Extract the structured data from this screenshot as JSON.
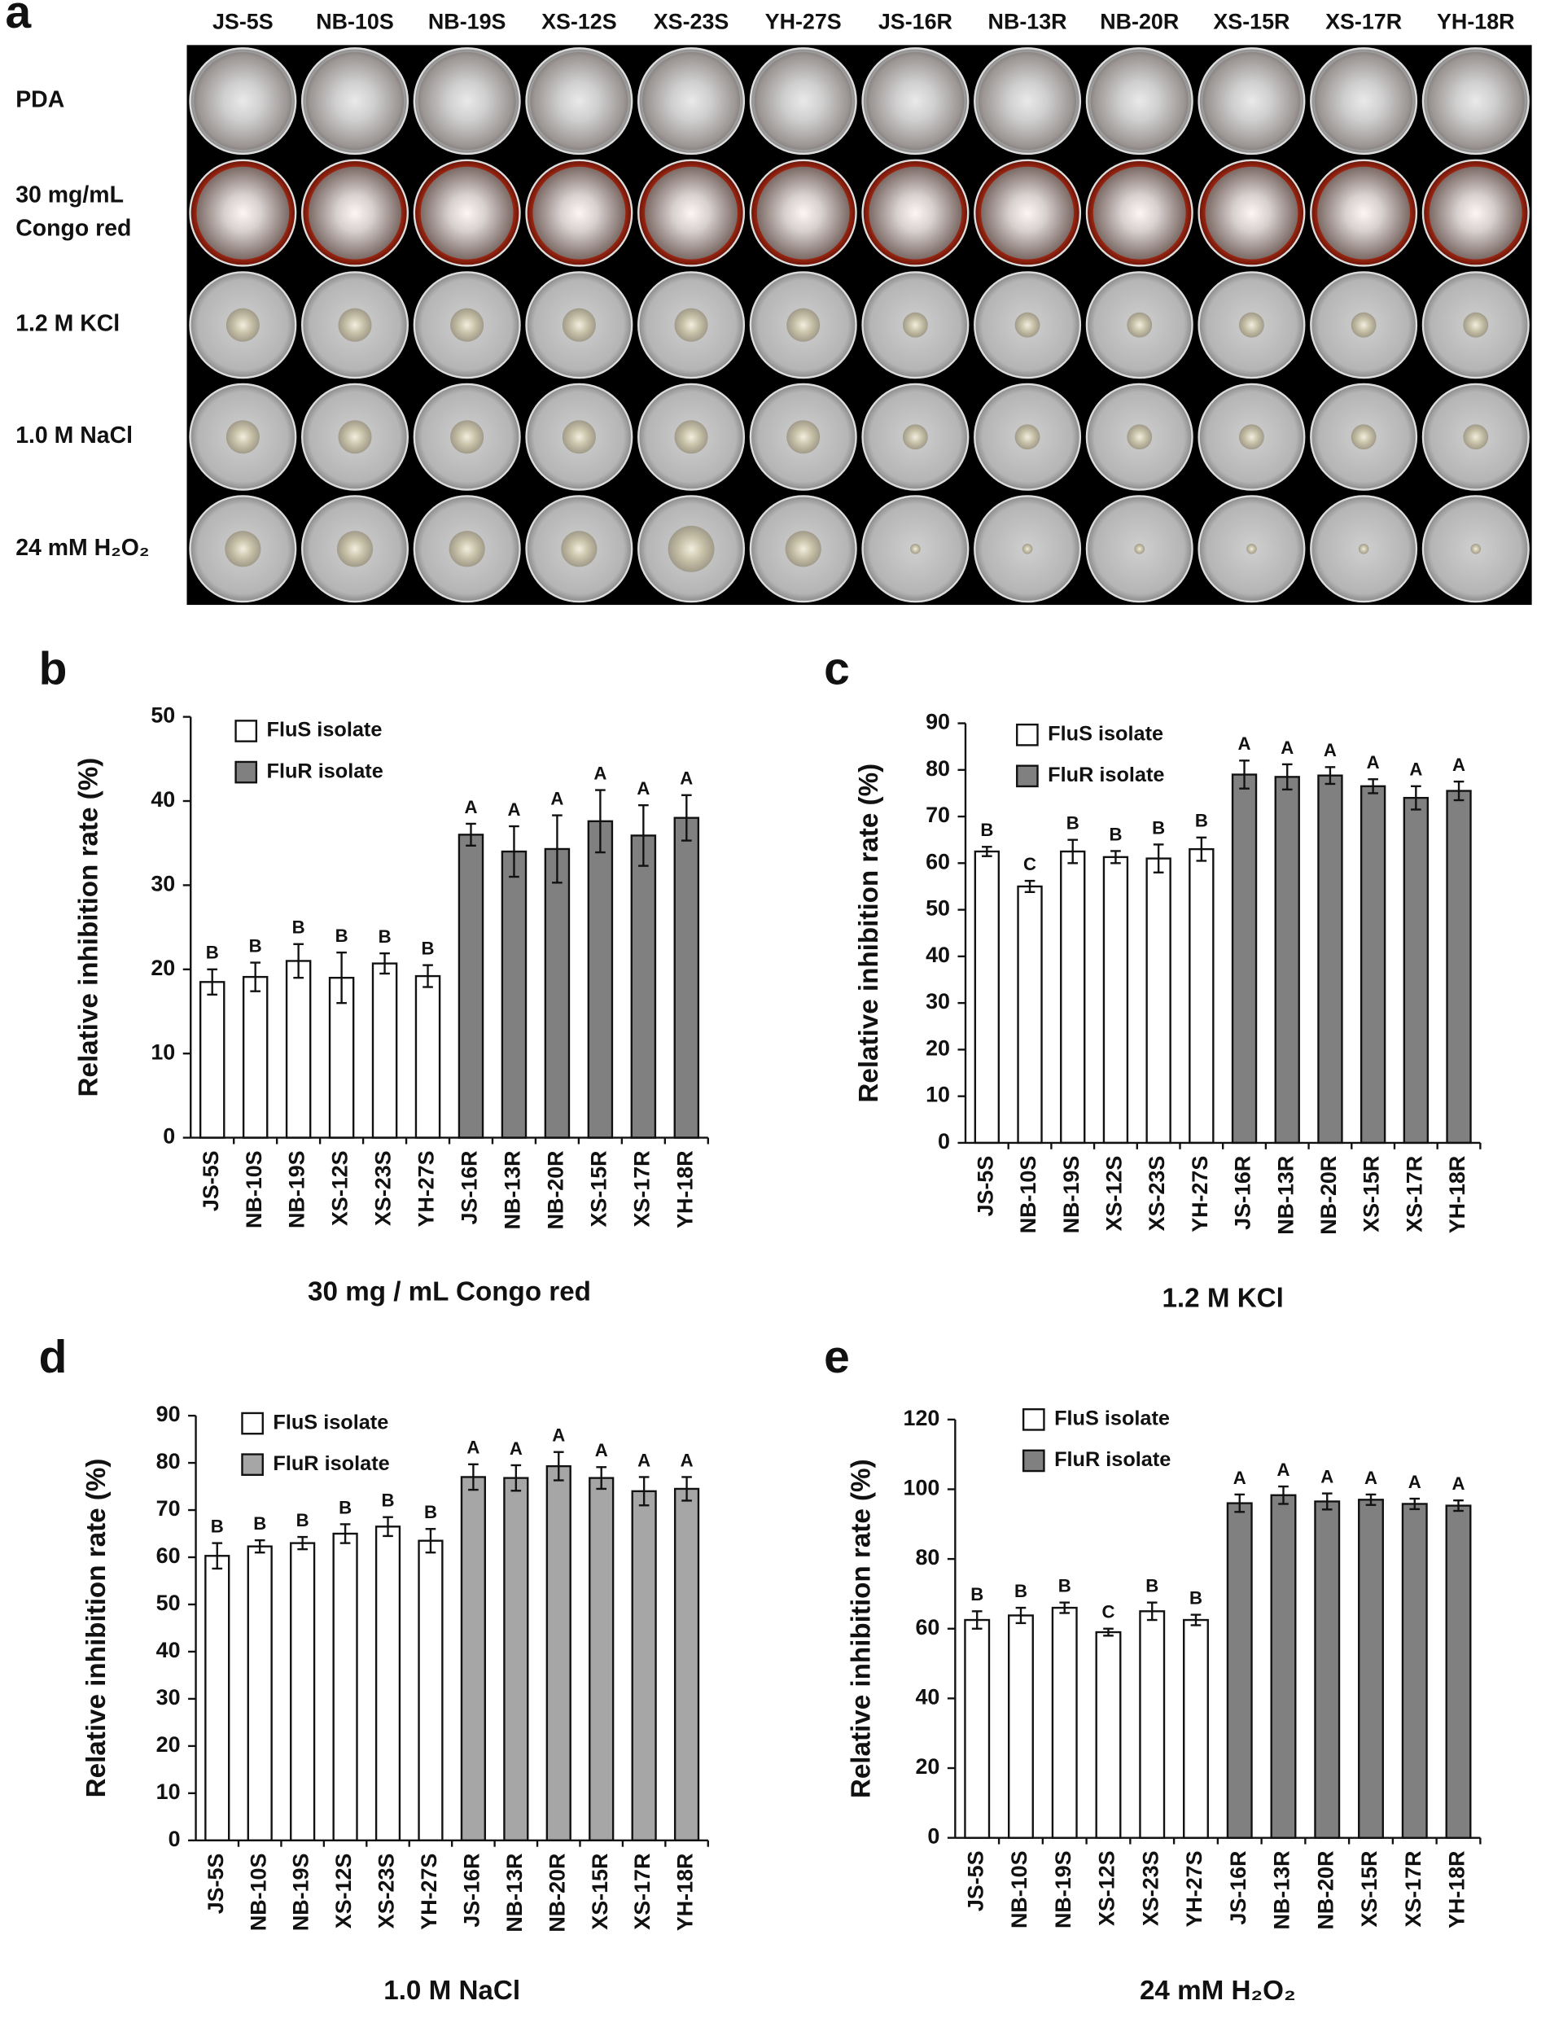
{
  "panel_a": {
    "label": "a",
    "columns": [
      "JS-5S",
      "NB-10S",
      "NB-19S",
      "XS-12S",
      "XS-23S",
      "YH-27S",
      "JS-16R",
      "NB-13R",
      "NB-20R",
      "XS-15R",
      "XS-17R",
      "YH-18R"
    ],
    "rows": [
      [
        "PDA"
      ],
      [
        "30 mg/mL",
        "Congo red"
      ],
      [
        "1.2 M KCl"
      ],
      [
        "1.0 M NaCl"
      ],
      [
        "24 mM H₂O₂"
      ]
    ]
  },
  "chart_data": [
    {
      "type": "bar",
      "panel_label": "b",
      "ylabel": "Relative inhibition rate (%)",
      "xlabel": "30 mg / mL Congo red",
      "categories": [
        "JS-5S",
        "NB-10S",
        "NB-19S",
        "XS-12S",
        "XS-23S",
        "YH-27S",
        "JS-16R",
        "NB-13R",
        "NB-20R",
        "XS-15R",
        "XS-17R",
        "YH-18R"
      ],
      "series": [
        {
          "name": "FluS isolate",
          "color": "#ffffff",
          "values": [
            18.5,
            19.1,
            21,
            19,
            20.7,
            19.2,
            null,
            null,
            null,
            null,
            null,
            null
          ],
          "errors": [
            1.5,
            1.7,
            2,
            3,
            1.2,
            1.3,
            null,
            null,
            null,
            null,
            null,
            null
          ]
        },
        {
          "name": "FluR isolate",
          "color": "#808080",
          "values": [
            null,
            null,
            null,
            null,
            null,
            null,
            36,
            34,
            34.3,
            37.6,
            35.9,
            38
          ],
          "errors": [
            null,
            null,
            null,
            null,
            null,
            null,
            1.3,
            3,
            4,
            3.7,
            3.6,
            2.7
          ]
        }
      ],
      "annotations": [
        "B",
        "B",
        "B",
        "B",
        "B",
        "B",
        "A",
        "A",
        "A",
        "A",
        "A",
        "A"
      ],
      "ylim": [
        0,
        50
      ],
      "yticks": [
        0,
        10,
        20,
        30,
        40,
        50
      ],
      "grid": false,
      "legend": "upper left"
    },
    {
      "type": "bar",
      "panel_label": "c",
      "ylabel": "Relative inhibition rate (%)",
      "xlabel": "1.2 M KCl",
      "categories": [
        "JS-5S",
        "NB-10S",
        "NB-19S",
        "XS-12S",
        "XS-23S",
        "YH-27S",
        "JS-16R",
        "NB-13R",
        "NB-20R",
        "XS-15R",
        "XS-17R",
        "YH-18R"
      ],
      "series": [
        {
          "name": "FluS isolate",
          "color": "#ffffff",
          "values": [
            62.5,
            55,
            62.5,
            61.3,
            61,
            63,
            null,
            null,
            null,
            null,
            null,
            null
          ],
          "errors": [
            1,
            1.2,
            2.5,
            1.3,
            3,
            2.5,
            null,
            null,
            null,
            null,
            null,
            null
          ]
        },
        {
          "name": "FluR isolate",
          "color": "#808080",
          "values": [
            null,
            null,
            null,
            null,
            null,
            null,
            79,
            78.5,
            78.8,
            76.5,
            74,
            75.5
          ],
          "errors": [
            null,
            null,
            null,
            null,
            null,
            null,
            3,
            2.7,
            1.8,
            1.5,
            2.5,
            2
          ]
        }
      ],
      "annotations": [
        "B",
        "C",
        "B",
        "B",
        "B",
        "B",
        "A",
        "A",
        "A",
        "A",
        "A",
        "A"
      ],
      "ylim": [
        0,
        90
      ],
      "yticks": [
        0,
        10,
        20,
        30,
        40,
        50,
        60,
        70,
        80,
        90
      ],
      "grid": false,
      "legend": "upper left"
    },
    {
      "type": "bar",
      "panel_label": "d",
      "ylabel": "Relative inhibition rate (%)",
      "xlabel": "1.0 M NaCl",
      "categories": [
        "JS-5S",
        "NB-10S",
        "NB-19S",
        "XS-12S",
        "XS-23S",
        "YH-27S",
        "JS-16R",
        "NB-13R",
        "NB-20R",
        "XS-15R",
        "XS-17R",
        "YH-18R"
      ],
      "series": [
        {
          "name": "FluS isolate",
          "color": "#ffffff",
          "values": [
            60.3,
            62.3,
            63,
            65,
            66.5,
            63.5,
            null,
            null,
            null,
            null,
            null,
            null
          ],
          "errors": [
            2.7,
            1.3,
            1.3,
            2,
            2,
            2.5,
            null,
            null,
            null,
            null,
            null,
            null
          ]
        },
        {
          "name": "FluR isolate",
          "color": "#a6a6a6",
          "values": [
            null,
            null,
            null,
            null,
            null,
            null,
            77,
            76.8,
            79.3,
            76.8,
            74,
            74.5
          ],
          "errors": [
            null,
            null,
            null,
            null,
            null,
            null,
            2.7,
            2.7,
            3,
            2.3,
            3,
            2.5
          ]
        }
      ],
      "annotations": [
        "B",
        "B",
        "B",
        "B",
        "B",
        "B",
        "A",
        "A",
        "A",
        "A",
        "A",
        "A"
      ],
      "ylim": [
        0,
        90
      ],
      "yticks": [
        0,
        10,
        20,
        30,
        40,
        50,
        60,
        70,
        80,
        90
      ],
      "grid": false,
      "legend": "upper left"
    },
    {
      "type": "bar",
      "panel_label": "e",
      "ylabel": "Relative inhibition rate (%)",
      "xlabel": "24 mM H₂O₂",
      "categories": [
        "JS-5S",
        "NB-10S",
        "NB-19S",
        "XS-12S",
        "XS-23S",
        "YH-27S",
        "JS-16R",
        "NB-13R",
        "NB-20R",
        "XS-15R",
        "XS-17R",
        "YH-18R"
      ],
      "series": [
        {
          "name": "FluS isolate",
          "color": "#ffffff",
          "values": [
            62.5,
            63.8,
            66,
            59,
            65,
            62.5,
            null,
            null,
            null,
            null,
            null,
            null
          ],
          "errors": [
            2.5,
            2.2,
            1.5,
            1,
            2.5,
            1.5,
            null,
            null,
            null,
            null,
            null,
            null
          ]
        },
        {
          "name": "FluR isolate",
          "color": "#808080",
          "values": [
            null,
            null,
            null,
            null,
            null,
            null,
            96,
            98.3,
            96.5,
            97,
            95.8,
            95.3
          ],
          "errors": [
            null,
            null,
            null,
            null,
            null,
            null,
            2.5,
            2.5,
            2.3,
            1.5,
            1.5,
            1.5
          ]
        }
      ],
      "annotations": [
        "B",
        "B",
        "B",
        "C",
        "B",
        "B",
        "A",
        "A",
        "A",
        "A",
        "A",
        "A"
      ],
      "ylim": [
        0,
        120
      ],
      "yticks": [
        0,
        20,
        40,
        60,
        80,
        100,
        120
      ],
      "grid": false,
      "legend": "upper left"
    }
  ]
}
